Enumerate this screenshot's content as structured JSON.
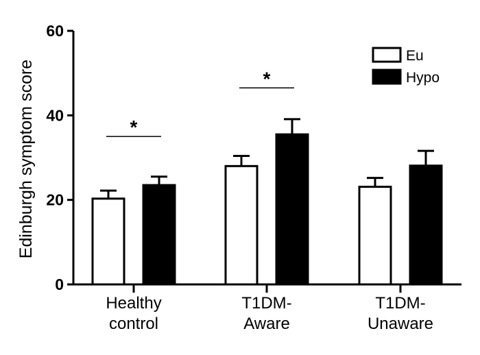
{
  "chart_data": {
    "type": "bar",
    "title": "",
    "xlabel": "",
    "ylabel": "Edinburgh symptom score",
    "ylim": [
      0,
      60
    ],
    "yticks": [
      "0",
      "20",
      "40",
      "60"
    ],
    "categories": [
      [
        "Healthy",
        "control"
      ],
      [
        "T1DM-",
        "Aware"
      ],
      [
        "T1DM-",
        "Unaware"
      ]
    ],
    "series": [
      {
        "name": "Eu",
        "fill": "#ffffff",
        "values": [
          20.3,
          28.0,
          23.1
        ],
        "error_upper": [
          22.2,
          30.4,
          25.2
        ]
      },
      {
        "name": "Hypo",
        "fill": "#000000",
        "values": [
          23.5,
          35.5,
          28.1
        ],
        "error_upper": [
          25.5,
          39.1,
          31.6
        ]
      }
    ],
    "significance": [
      {
        "category_index": 0,
        "label": "*",
        "y": 35
      },
      {
        "category_index": 1,
        "label": "*",
        "y": 46.5
      }
    ],
    "legend": {
      "position": "top-right",
      "entries": [
        "Eu",
        "Hypo"
      ]
    },
    "grid": false
  }
}
